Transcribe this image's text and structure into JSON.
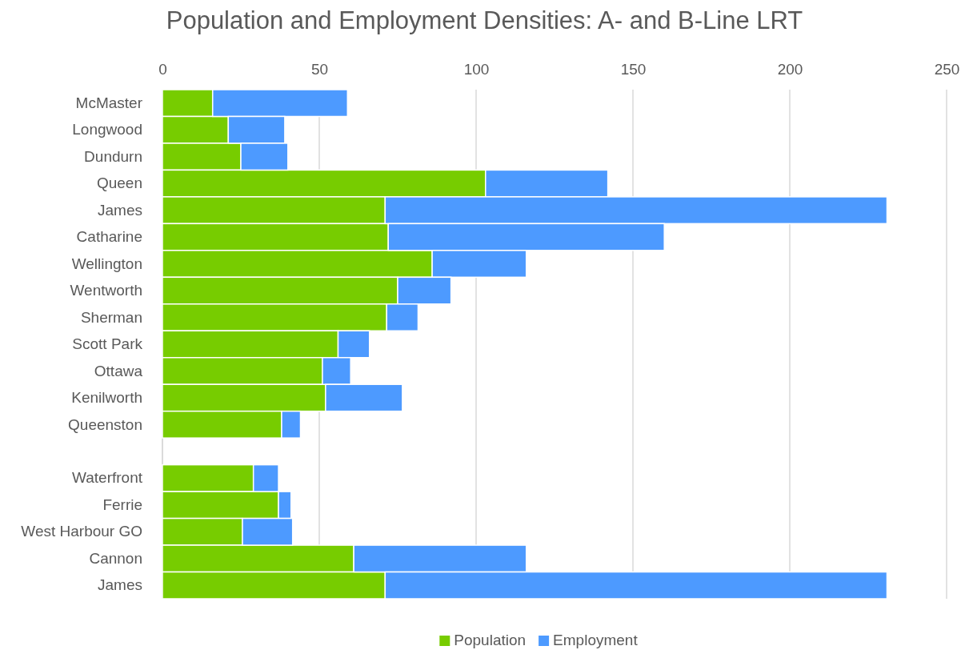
{
  "chart_data": {
    "type": "bar",
    "title": "Population and Employment Densities: A- and B-Line LRT",
    "orientation": "horizontal",
    "stacked": true,
    "categories": [
      "McMaster",
      "Longwood",
      "Dundurn",
      "Queen",
      "James",
      "Catharine",
      "Wellington",
      "Wentworth",
      "Sherman",
      "Scott Park",
      "Ottawa",
      "Kenilworth",
      "Queenston",
      null,
      "Waterfront",
      "Ferrie",
      "West Harbour GO",
      "Cannon",
      "James"
    ],
    "series": [
      {
        "name": "Population",
        "color": "#77cc00",
        "values": [
          16,
          21,
          25,
          103,
          71,
          72,
          86,
          75,
          71.5,
          56,
          51,
          52,
          38,
          null,
          29,
          37,
          25.5,
          61,
          71
        ]
      },
      {
        "name": "Employment",
        "color": "#4d9aff",
        "values": [
          43,
          18,
          15,
          39,
          160,
          88,
          30,
          17,
          10,
          10,
          9,
          24.5,
          6,
          null,
          8,
          4,
          16,
          55,
          160
        ]
      }
    ],
    "xlim": [
      0,
      250
    ],
    "xticks": [
      0,
      50,
      100,
      150,
      200,
      250
    ],
    "grid": "x",
    "legend": "bottom"
  }
}
